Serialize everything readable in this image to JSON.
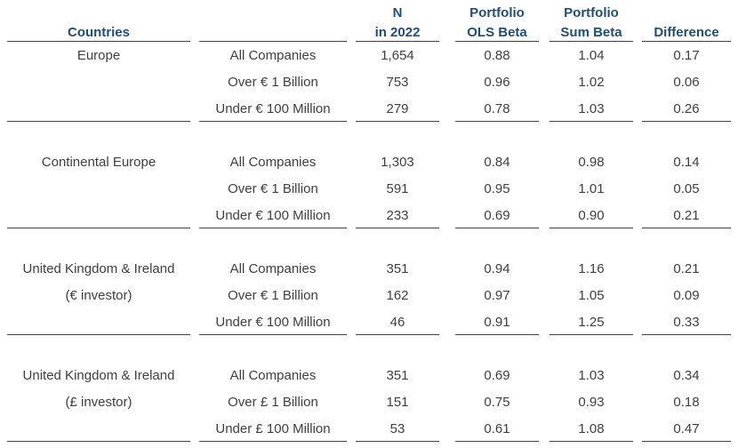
{
  "headers": {
    "countries": "Countries",
    "n": [
      "N",
      "in 2022"
    ],
    "ols": [
      "Portfolio",
      "OLS Beta"
    ],
    "sum": [
      "Portfolio",
      "Sum Beta"
    ],
    "diff": "Difference"
  },
  "groups": [
    {
      "country": [
        "Europe"
      ],
      "rows": [
        {
          "size": "All Companies",
          "n": "1,654",
          "ols": "0.88",
          "sum": "1.04",
          "diff": "0.17"
        },
        {
          "size": "Over € 1 Billion",
          "n": "753",
          "ols": "0.96",
          "sum": "1.02",
          "diff": "0.06"
        },
        {
          "size": "Under € 100 Million",
          "n": "279",
          "ols": "0.78",
          "sum": "1.03",
          "diff": "0.26"
        }
      ]
    },
    {
      "country": [
        "Continental Europe"
      ],
      "rows": [
        {
          "size": "All Companies",
          "n": "1,303",
          "ols": "0.84",
          "sum": "0.98",
          "diff": "0.14"
        },
        {
          "size": "Over € 1 Billion",
          "n": "591",
          "ols": "0.95",
          "sum": "1.01",
          "diff": "0.05"
        },
        {
          "size": "Under € 100 Million",
          "n": "233",
          "ols": "0.69",
          "sum": "0.90",
          "diff": "0.21"
        }
      ]
    },
    {
      "country": [
        "United Kingdom & Ireland",
        "(€ investor)"
      ],
      "rows": [
        {
          "size": "All Companies",
          "n": "351",
          "ols": "0.94",
          "sum": "1.16",
          "diff": "0.21"
        },
        {
          "size": "Over € 1 Billion",
          "n": "162",
          "ols": "0.97",
          "sum": "1.05",
          "diff": "0.09"
        },
        {
          "size": "Under € 100 Million",
          "n": "46",
          "ols": "0.91",
          "sum": "1.25",
          "diff": "0.33"
        }
      ]
    },
    {
      "country": [
        "United Kingdom & Ireland",
        "(£ investor)"
      ],
      "rows": [
        {
          "size": "All Companies",
          "n": "351",
          "ols": "0.69",
          "sum": "1.03",
          "diff": "0.34"
        },
        {
          "size": "Over £ 1 Billion",
          "n": "151",
          "ols": "0.75",
          "sum": "0.93",
          "diff": "0.18"
        },
        {
          "size": "Under £ 100 Million",
          "n": "53",
          "ols": "0.61",
          "sum": "1.08",
          "diff": "0.47"
        }
      ]
    }
  ]
}
